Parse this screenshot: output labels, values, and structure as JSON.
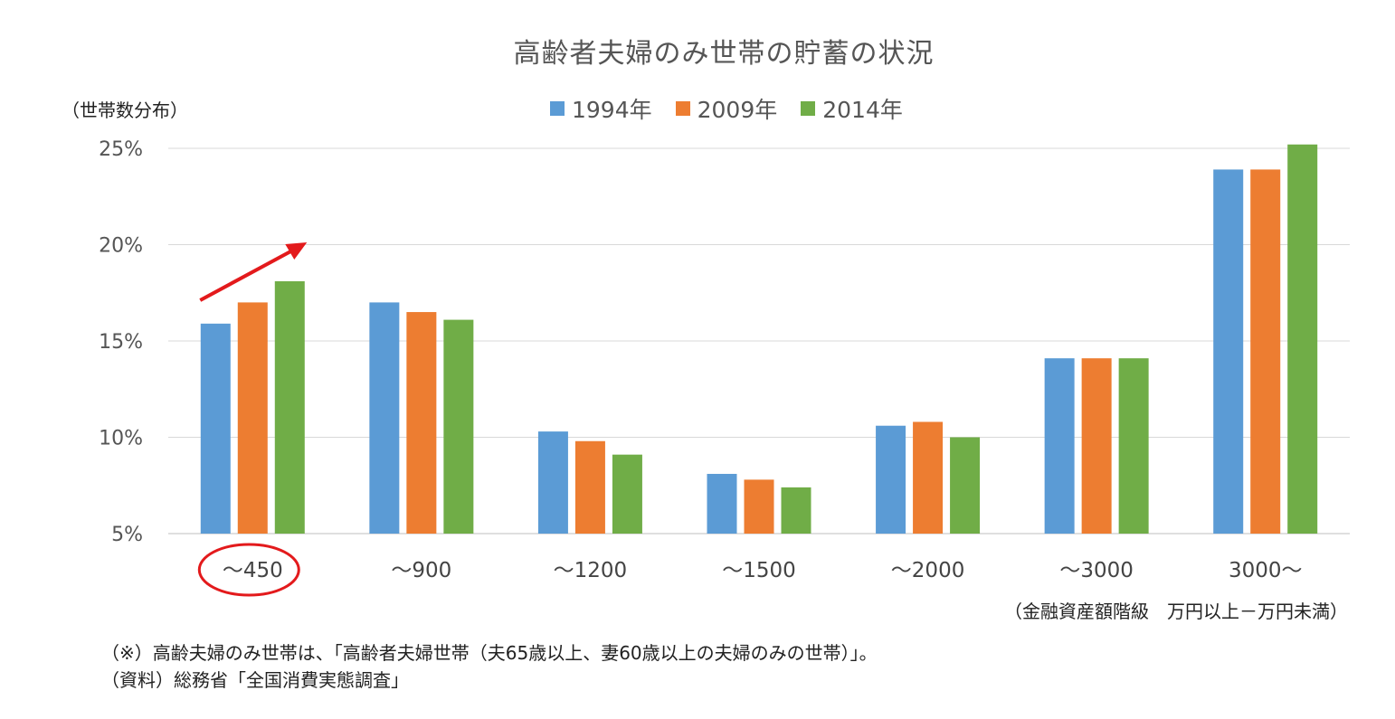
{
  "chart_data": {
    "type": "bar",
    "title": "高齢者夫婦のみ世帯の貯蓄の状況",
    "ylabel": "（世帯数分布）",
    "xlabel": "（金融資産額階級　万円以上－万円未満）",
    "categories": [
      "～450",
      "～900",
      "～1200",
      "～1500",
      "～2000",
      "～3000",
      "3000～"
    ],
    "series": [
      {
        "name": "1994年",
        "color": "#5B9BD5",
        "values": [
          15.9,
          17.0,
          10.3,
          8.1,
          10.6,
          14.1,
          23.9
        ]
      },
      {
        "name": "2009年",
        "color": "#ED7D31",
        "values": [
          17.0,
          16.5,
          9.8,
          7.8,
          10.8,
          14.1,
          23.9
        ]
      },
      {
        "name": "2014年",
        "color": "#70AD47",
        "values": [
          18.1,
          16.1,
          9.1,
          7.4,
          10.0,
          14.1,
          25.2
        ]
      }
    ],
    "ylim": [
      5,
      25
    ],
    "yticks": [
      5,
      10,
      15,
      20,
      25
    ],
    "ytick_labels": [
      "5%",
      "10%",
      "15%",
      "20%",
      "25%"
    ],
    "grid": true,
    "legend_position": "top-center",
    "annotations": [
      {
        "type": "arrow",
        "color": "#E31A1C",
        "near_category": "～450",
        "meaning": "increasing trend"
      },
      {
        "type": "ellipse",
        "color": "#E31A1C",
        "around_category": "～450"
      }
    ]
  },
  "notes": [
    "（※）高齢夫婦のみ世帯は、「高齢者夫婦世帯（夫65歳以上、妻60歳以上の夫婦のみの世帯）」。",
    "（資料）総務省「全国消費実態調査」"
  ]
}
